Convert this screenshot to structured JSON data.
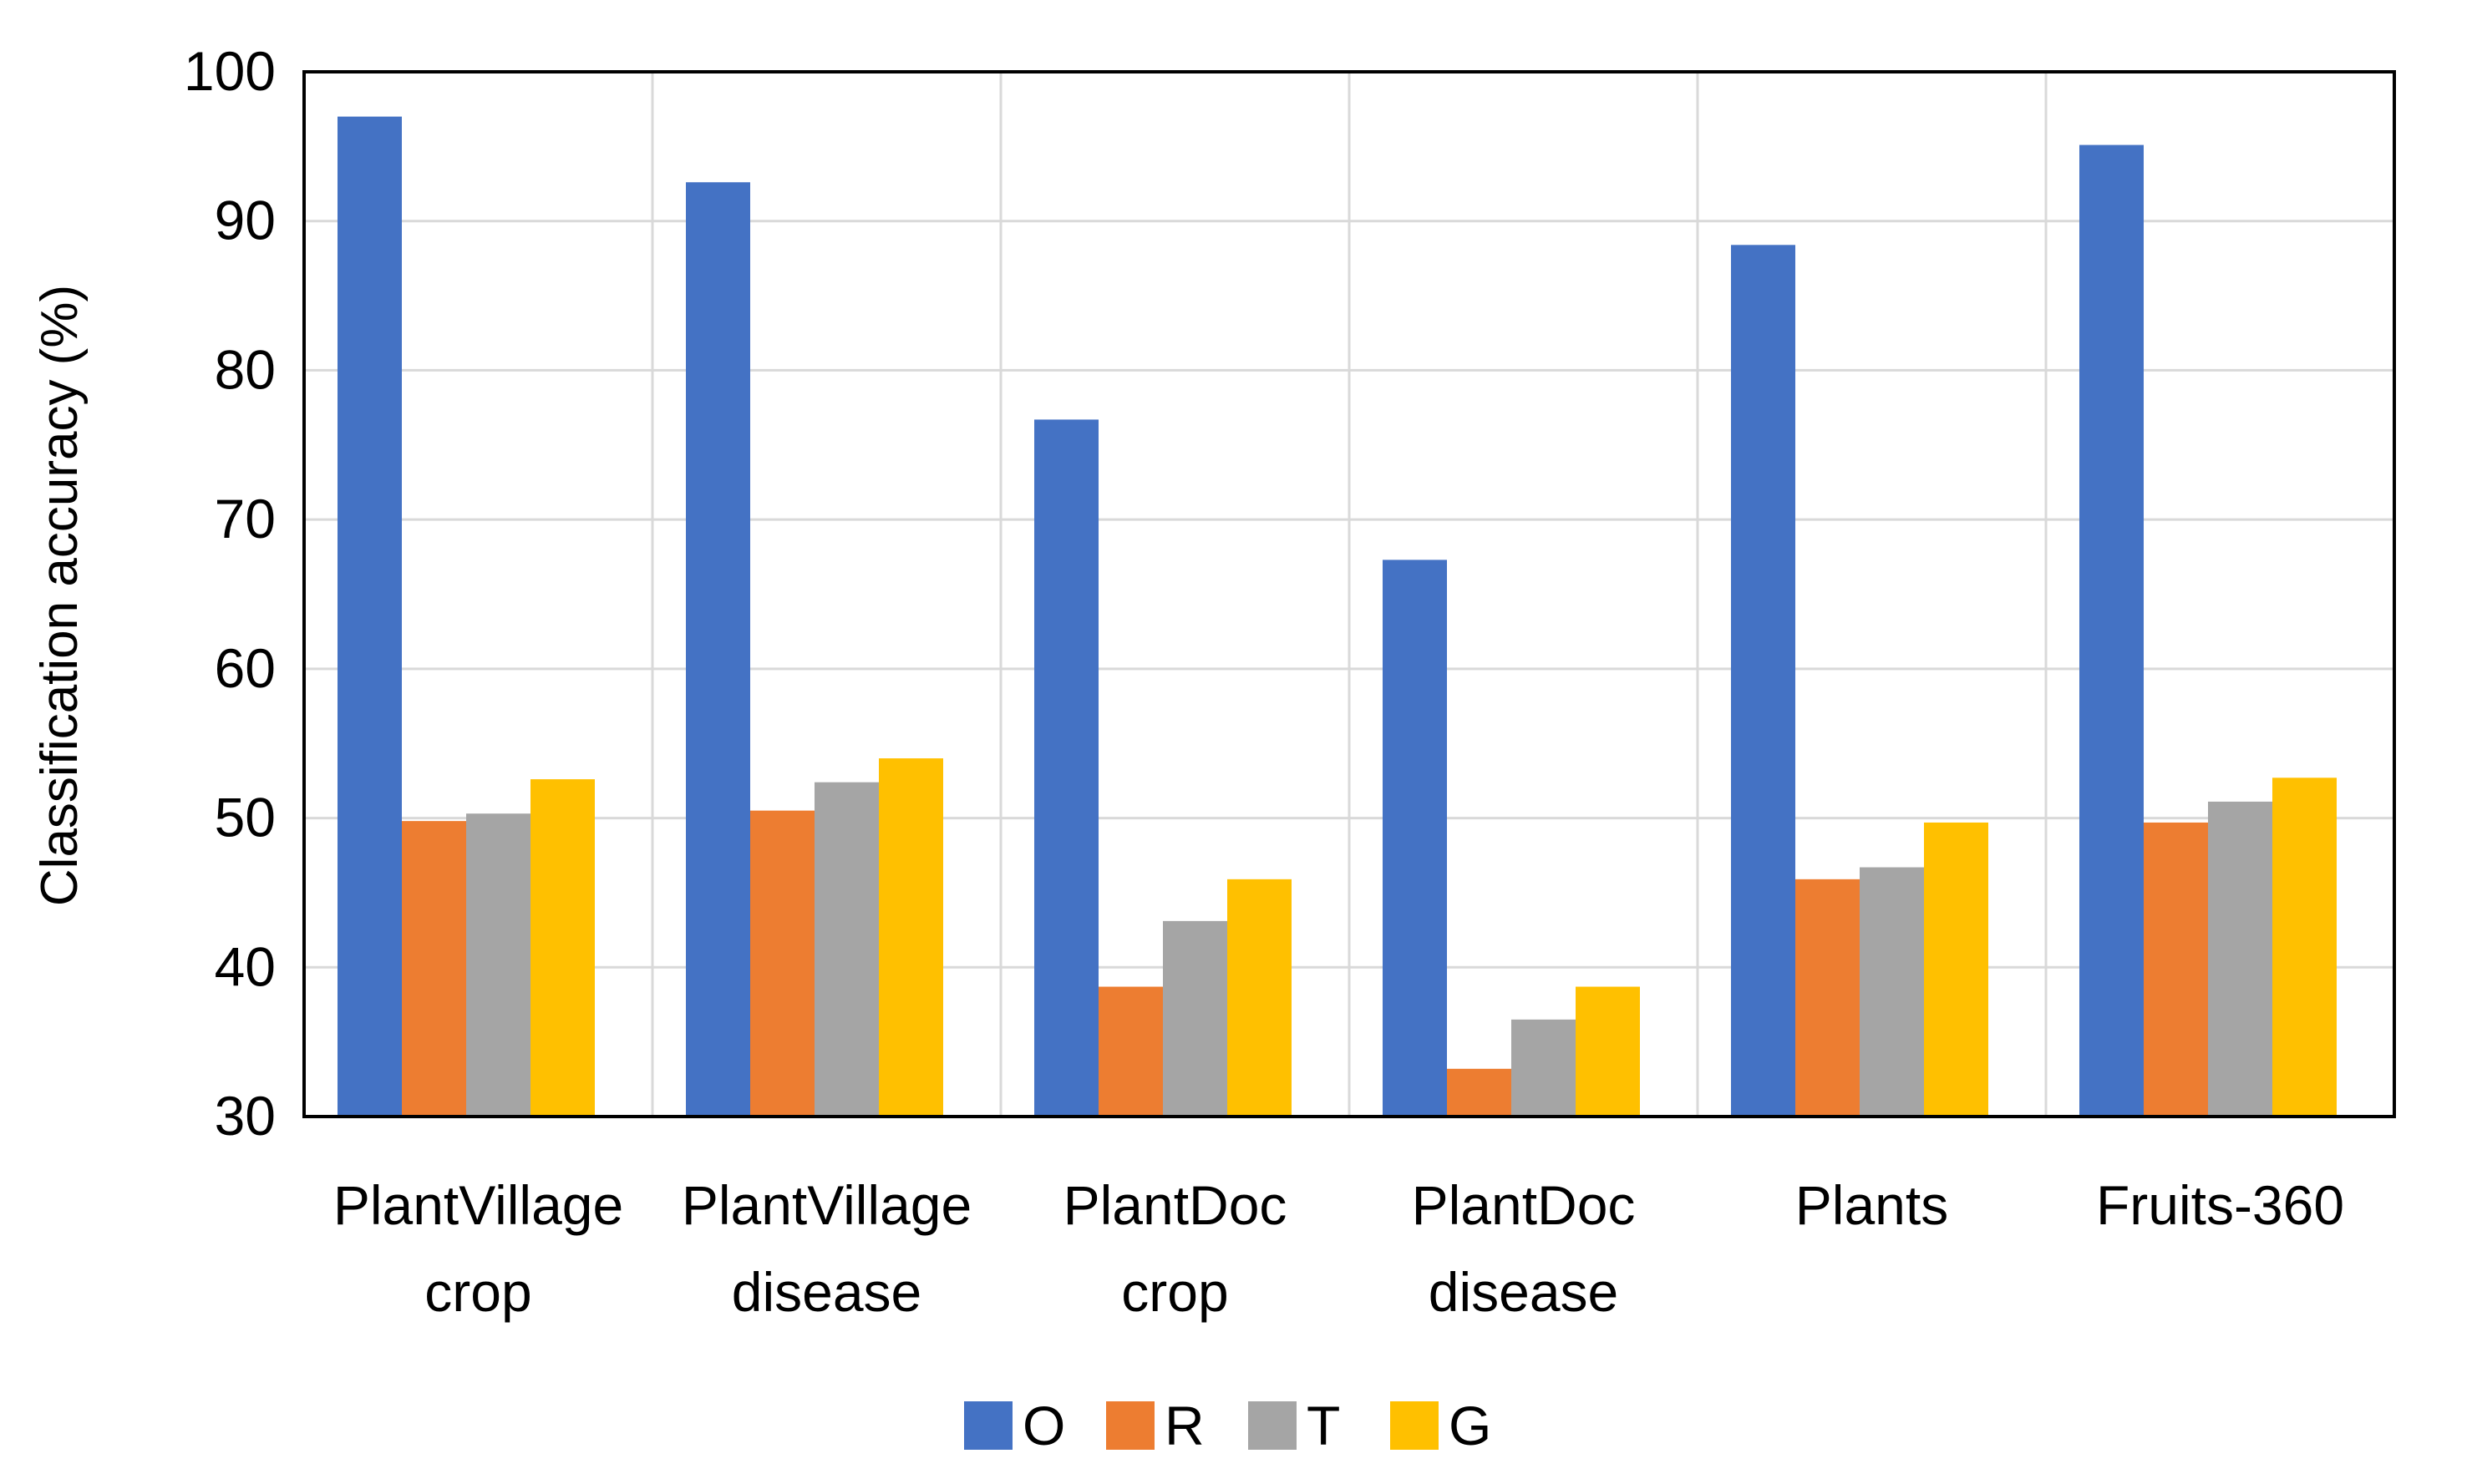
{
  "chart_data": {
    "type": "bar",
    "title": "",
    "xlabel": "",
    "ylabel": "Classification accuracy (%)",
    "ylim": [
      30,
      100
    ],
    "yticks": [
      "30",
      "40",
      "50",
      "60",
      "70",
      "80",
      "90",
      "100"
    ],
    "grid": true,
    "legend_position": "bottom-center",
    "categories": [
      [
        "PlantVillage",
        "crop"
      ],
      [
        "PlantVillage",
        "disease"
      ],
      [
        "PlantDoc",
        "crop"
      ],
      [
        "PlantDoc",
        "disease"
      ],
      [
        "Plants"
      ],
      [
        "Fruits-360"
      ]
    ],
    "series": [
      {
        "name": "O",
        "color": "#4472C4",
        "values": [
          97.0,
          92.6,
          76.7,
          67.3,
          88.4,
          95.1
        ]
      },
      {
        "name": "R",
        "color": "#ED7D31",
        "values": [
          49.8,
          50.5,
          38.7,
          33.2,
          45.9,
          49.7
        ]
      },
      {
        "name": "T",
        "color": "#A5A5A5",
        "values": [
          50.3,
          52.4,
          43.1,
          36.5,
          46.7,
          51.1
        ]
      },
      {
        "name": "G",
        "color": "#FFC000",
        "values": [
          52.6,
          54.0,
          45.9,
          38.7,
          49.7,
          52.7
        ]
      }
    ]
  }
}
